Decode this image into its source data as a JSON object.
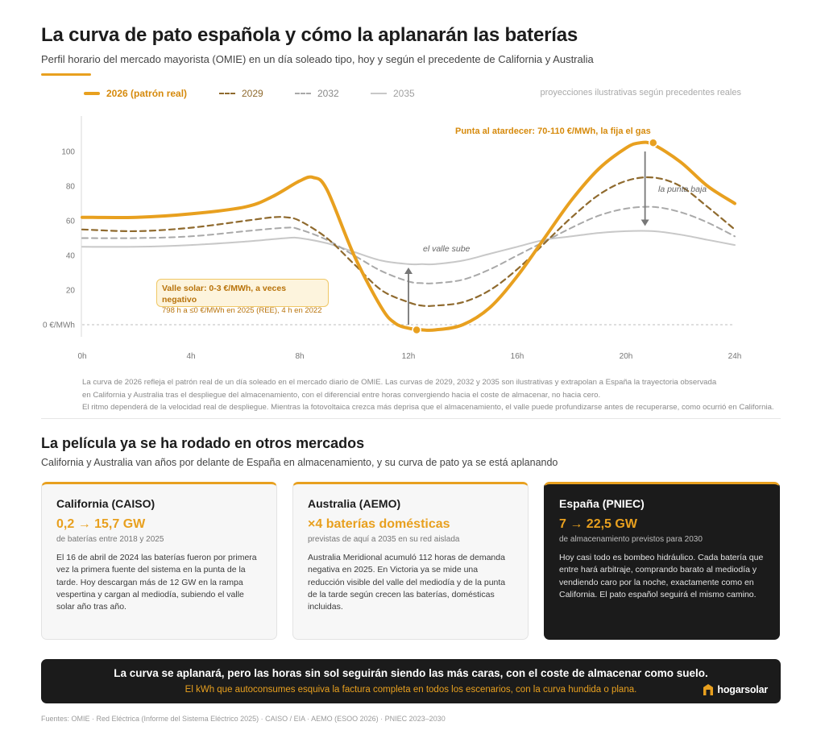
{
  "header": {
    "title": "La curva de pato española y cómo la aplanarán las baterías",
    "subtitle": "Perfil horario del mercado mayorista (OMIE) en un día soleado tipo, hoy y según el precedente de California y Australia"
  },
  "legend": {
    "note": "proyecciones ilustrativas según precedentes reales"
  },
  "chart_data": {
    "type": "line",
    "xlabel": "",
    "ylabel": "",
    "x_ticks": [
      "0h",
      "4h",
      "8h",
      "12h",
      "16h",
      "20h",
      "24h"
    ],
    "y_ticks": [
      {
        "value": 0,
        "label": "0 €/MWh"
      },
      {
        "value": 20,
        "label": "20"
      },
      {
        "value": 40,
        "label": "40"
      },
      {
        "value": 60,
        "label": "60"
      },
      {
        "value": 80,
        "label": "80"
      },
      {
        "value": 100,
        "label": "100"
      }
    ],
    "xlim": [
      0,
      24
    ],
    "ylim": [
      -6,
      120
    ],
    "zero_line": true,
    "series": [
      {
        "name": "2026 (patrón real)",
        "color": "#e8a01f",
        "style": "solid",
        "width": 4,
        "x": [
          0,
          2,
          4,
          6,
          7,
          8,
          8.5,
          9,
          10,
          11,
          11.5,
          12,
          12.5,
          13,
          14,
          15,
          16,
          17,
          18,
          19,
          20,
          20.5,
          21,
          22,
          23,
          24
        ],
        "y": [
          62,
          62,
          64,
          68,
          74,
          83,
          85,
          78,
          40,
          10,
          1,
          -2,
          -3,
          -3,
          0,
          10,
          28,
          50,
          72,
          90,
          102,
          105,
          104,
          94,
          80,
          70
        ]
      },
      {
        "name": "2029",
        "color": "#8f6a2e",
        "style": "dashed",
        "width": 2.2,
        "x": [
          0,
          2,
          4,
          6,
          7,
          7.5,
          8,
          9,
          10,
          11,
          12,
          12.5,
          13,
          14,
          15,
          16,
          17,
          18,
          19,
          20,
          21,
          22,
          23,
          24
        ],
        "y": [
          55,
          54,
          56,
          60,
          62,
          62,
          60,
          50,
          35,
          20,
          13,
          11,
          11,
          13,
          20,
          32,
          47,
          62,
          75,
          83,
          85,
          80,
          68,
          55
        ]
      },
      {
        "name": "2032",
        "color": "#a9a9a9",
        "style": "dashed",
        "width": 2,
        "x": [
          0,
          2,
          4,
          6,
          7.5,
          8,
          9,
          10,
          11,
          12,
          12.5,
          13,
          14,
          15,
          16,
          17,
          18,
          19,
          20,
          21,
          22,
          23,
          24
        ],
        "y": [
          50,
          50,
          51,
          54,
          56,
          55,
          49,
          40,
          31,
          25,
          24,
          24,
          26,
          32,
          40,
          48,
          56,
          63,
          67,
          68,
          65,
          59,
          51
        ]
      },
      {
        "name": "2035",
        "color": "#c8c8c8",
        "style": "solid",
        "width": 2,
        "x": [
          0,
          2,
          4,
          6,
          7.5,
          8,
          9,
          10,
          11,
          12,
          12.5,
          13,
          14,
          15,
          16,
          17,
          18,
          19,
          20,
          21,
          22,
          23,
          24
        ],
        "y": [
          45,
          45,
          46,
          48,
          50,
          50,
          47,
          42,
          37,
          35,
          35,
          35,
          37,
          41,
          45,
          49,
          51,
          53,
          54,
          54,
          52,
          49,
          46
        ]
      }
    ],
    "markers": [
      {
        "x": 12.3,
        "y": -3,
        "color": "#e8a01f"
      },
      {
        "x": 21,
        "y": 105,
        "color": "#e8a01f"
      }
    ],
    "arrows": [
      {
        "x": 12,
        "from": 0,
        "to": 33
      },
      {
        "x": 20.7,
        "from": 100,
        "to": 57
      }
    ],
    "annotations": {
      "peak": "Punta al atardecer: 70-110 €/MWh, la fija el gas",
      "peak_drop": "la punta baja",
      "valley_rise": "el valle sube",
      "callout_title": "Valle solar: 0-3 €/MWh, a veces negativo",
      "callout_sub": "798 h a ≤0 €/MWh en 2025 (REE), 4 h en 2022"
    }
  },
  "notes": {
    "line1": "La curva de 2026 refleja el patrón real de un día soleado en el mercado diario de OMIE. Las curvas de 2029, 2032 y 2035 son ilustrativas y extrapolan a España la trayectoria observada",
    "line2": "en California y Australia tras el despliegue del almacenamiento, con el diferencial entre horas convergiendo hacia el coste de almacenar, no hacia cero.",
    "line3": "El ritmo dependerá de la velocidad real de despliegue. Mientras la fotovoltaica crezca más deprisa que el almacenamiento, el valle puede profundizarse antes de recuperarse, como ocurrió en California."
  },
  "section2": {
    "title": "La película ya se ha rodado en otros mercados",
    "subtitle": "California y Australia van años por delante de España en almacenamiento, y su curva de pato ya se está aplanando"
  },
  "cards": [
    {
      "title": "California (CAISO)",
      "number": "0,2 → 15,7 GW",
      "sub": "de baterías entre 2018 y 2025",
      "body": "El 16 de abril de 2024 las baterías fueron por primera vez la primera fuente del sistema en la punta de la tarde. Hoy descargan más de 12 GW en la rampa vespertina y cargan al mediodía, subiendo el valle solar año tras año."
    },
    {
      "title": "Australia (AEMO)",
      "number": "×4 baterías domésticas",
      "sub": "previstas de aquí a 2035 en su red aislada",
      "body": "Australia Meridional acumuló 112 horas de demanda negativa en 2025. En Victoria ya se mide una reducción visible del valle del mediodía y de la punta de la tarde según crecen las baterías, domésticas incluidas."
    },
    {
      "title": "España (PNIEC)",
      "number": "7 → 22,5 GW",
      "sub": "de almacenamiento previstos para 2030",
      "body": "Hoy casi todo es bombeo hidráulico. Cada batería que entre hará arbitraje, comprando barato al mediodía y vendiendo caro por la noche, exactamente como en California. El pato español seguirá el mismo camino."
    }
  ],
  "banner": {
    "line1": "La curva se aplanará, pero las horas sin sol seguirán siendo las más caras, con el coste de almacenar como suelo.",
    "line2": "El kWh que autoconsumes esquiva la factura completa en todos los escenarios, con la curva hundida o plana.",
    "logo_text": "hogarsolar",
    "logo_icon": "house-icon"
  },
  "sources": "Fuentes: OMIE · Red Eléctrica (Informe del Sistema Eléctrico 2025) · CAISO / EIA · AEMO (ESOO 2026) · PNIEC 2023–2030"
}
